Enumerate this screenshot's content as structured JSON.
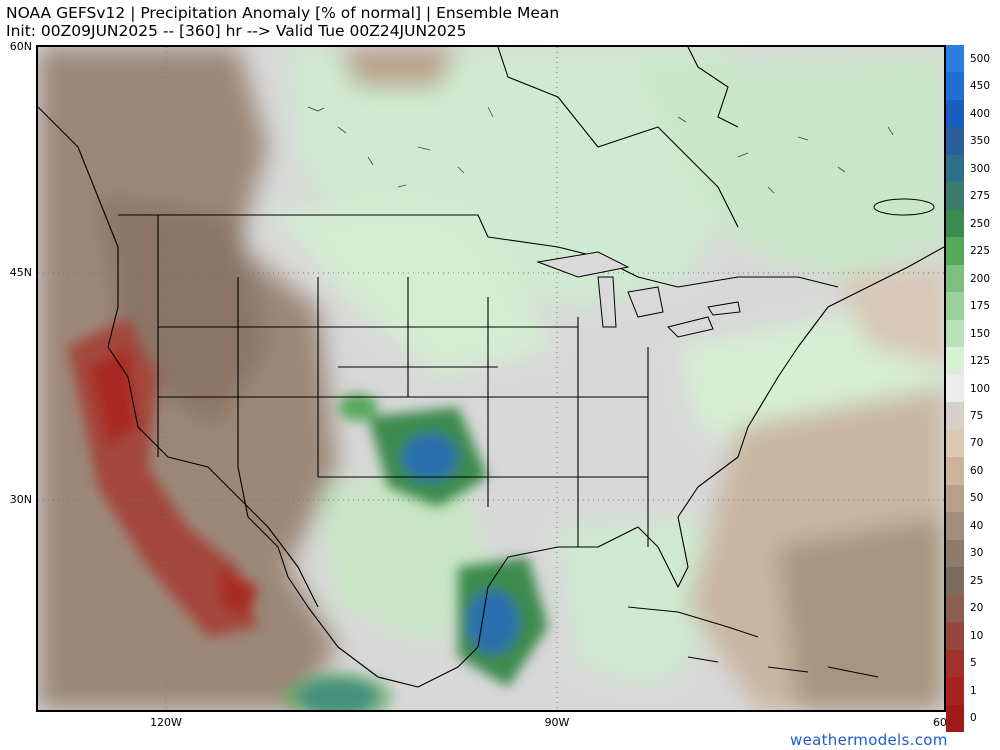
{
  "header": {
    "title_line1": "NOAA GEFSv12 | Precipitation Anomaly [% of normal] | Ensemble Mean",
    "title_line2": "Init: 00Z09JUN2025 -- [360] hr --> Valid Tue 00Z24JUN2025"
  },
  "axes": {
    "lat_labels": [
      "60N",
      "45N",
      "30N"
    ],
    "lon_labels": [
      "120W",
      "90W",
      "60"
    ]
  },
  "colorbar": {
    "labels": [
      "500",
      "450",
      "400",
      "350",
      "300",
      "275",
      "250",
      "225",
      "200",
      "175",
      "150",
      "125",
      "100",
      "75",
      "70",
      "60",
      "50",
      "40",
      "30",
      "25",
      "20",
      "10",
      "5",
      "1",
      "0"
    ],
    "colors": [
      "#2b7ee0",
      "#1f6fd4",
      "#1a5fbf",
      "#2a5e9c",
      "#2f6f88",
      "#3b7a6e",
      "#3d8a4e",
      "#58a85c",
      "#7dbf7c",
      "#9bd19b",
      "#b9e2b9",
      "#d7f0d4",
      "#ececec",
      "#d6d0c8",
      "#dcc9b2",
      "#ccb39a",
      "#b89f88",
      "#a38d7c",
      "#8f7b6c",
      "#7b6c60",
      "#8d5e52",
      "#97463e",
      "#a0322c",
      "#a8231f",
      "#9e1b17"
    ]
  },
  "credit": "weathermodels.com"
}
